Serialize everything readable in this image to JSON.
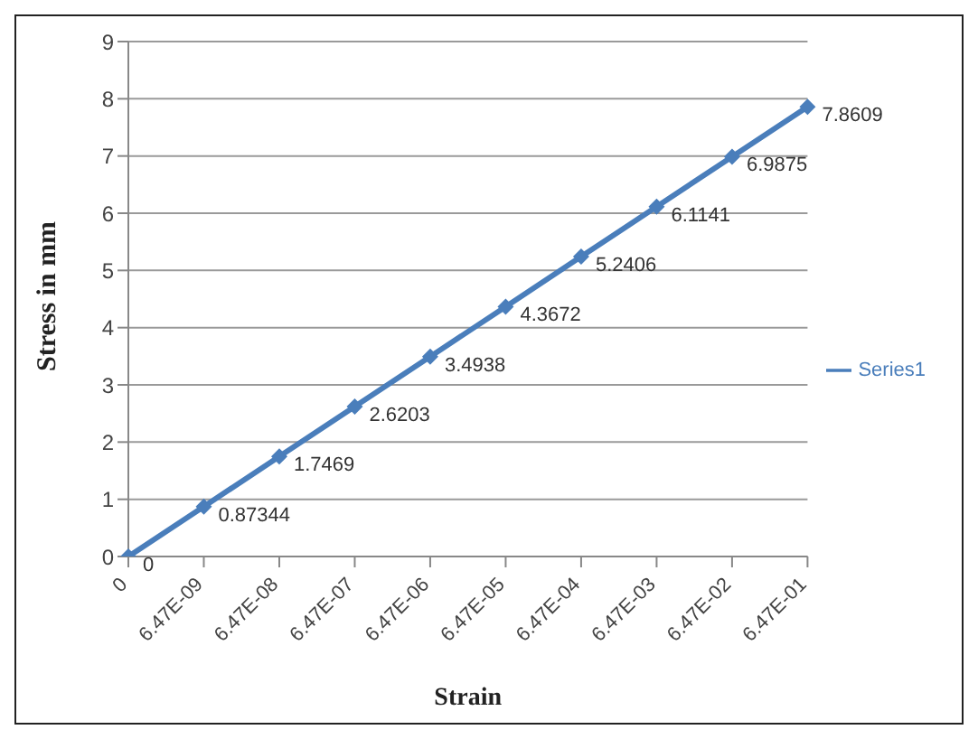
{
  "chart_data": {
    "type": "line",
    "xlabel": "Strain",
    "ylabel": "Stress in mm",
    "categories": [
      "0",
      "6.47E-09",
      "6.47E-08",
      "6.47E-07",
      "6.47E-06",
      "6.47E-05",
      "6.47E-04",
      "6.47E-03",
      "6.47E-02",
      "6.47E-01"
    ],
    "series": [
      {
        "name": "Series1",
        "color": "#4a7ebb",
        "values": [
          0,
          0.87344,
          1.7469,
          2.6203,
          3.4938,
          4.3672,
          5.2406,
          6.1141,
          6.9875,
          7.8609
        ]
      }
    ],
    "ylim": [
      0,
      9
    ],
    "yticks": [
      0,
      1,
      2,
      3,
      4,
      5,
      6,
      7,
      8,
      9
    ],
    "grid": "y",
    "legend": "right",
    "marker": "diamond",
    "line_style": "solid",
    "data_labels": true
  }
}
